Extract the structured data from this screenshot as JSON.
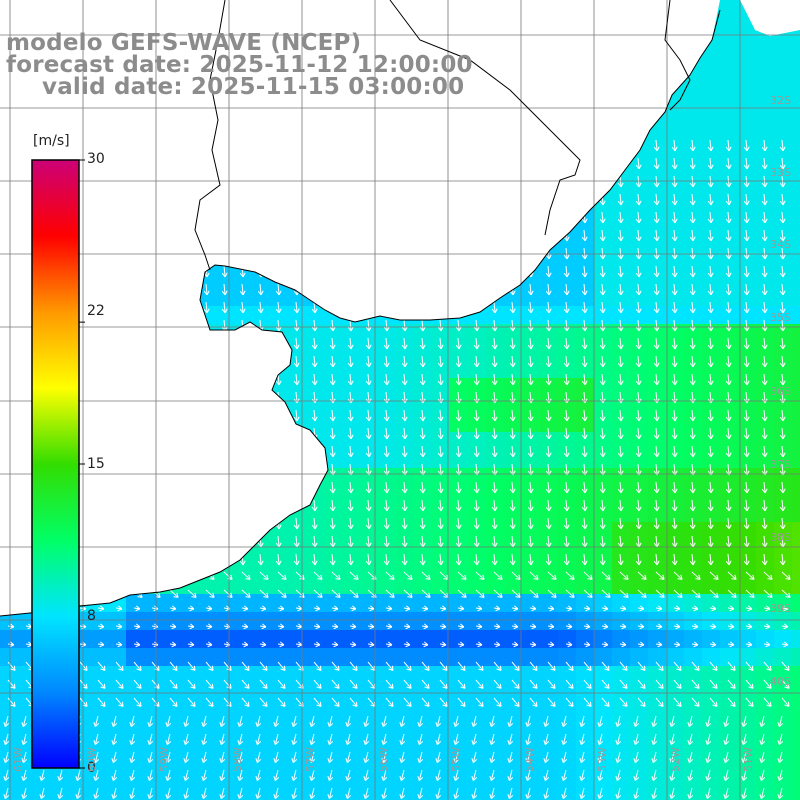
{
  "title": {
    "line1": "modelo GEFS-WAVE (NCEP)",
    "line2": "forecast date: 2025-11-12 12:00:00",
    "line3": "valid date: 2025-11-15 03:00:00"
  },
  "colorbar": {
    "unit": "[m/s]",
    "ticks": [
      "30",
      "22",
      "15",
      "8",
      "0"
    ],
    "tick_values": [
      30,
      22,
      15,
      8,
      0
    ],
    "range": [
      0,
      30
    ],
    "colors": [
      "#0000ff",
      "#0088ff",
      "#00e5ff",
      "#00ff66",
      "#33dd00",
      "#ffff00",
      "#ff9900",
      "#ff0000",
      "#cc0077"
    ]
  },
  "grid": {
    "lat_labels": [
      "32S",
      "33S",
      "34S",
      "35S",
      "36S",
      "37S",
      "38S",
      "39S",
      "40S"
    ],
    "lon_labels": [
      "61W",
      "60W",
      "59W",
      "58W",
      "57W",
      "56W",
      "55W",
      "54W",
      "53W",
      "52W",
      "51W"
    ]
  },
  "colors": {
    "land": "#ffffff",
    "coast": "#000000",
    "grid": "#777777",
    "arrow": "#ffffff",
    "title": "#8c8c8c"
  }
}
